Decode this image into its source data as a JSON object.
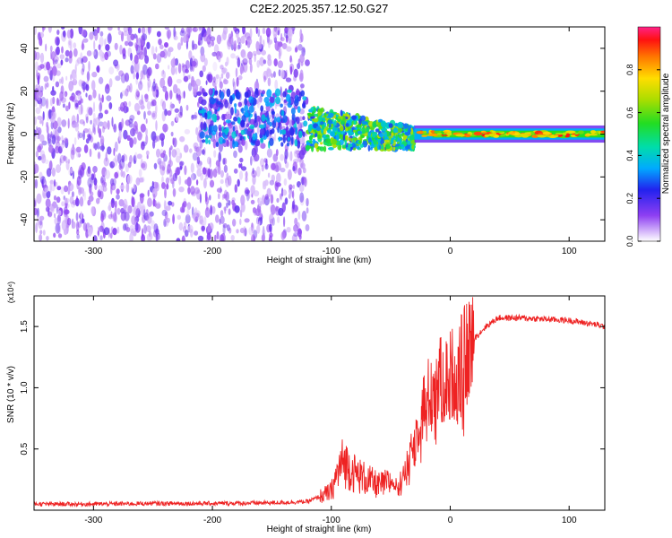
{
  "title": "C2E2.2025.357.12.50.G27",
  "chart_data": [
    {
      "type": "heatmap",
      "xlabel": "Height of straight line (km)",
      "ylabel": "Frequency (Hz)",
      "xlim": [
        -350,
        130
      ],
      "ylim": [
        -50,
        50
      ],
      "x_ticks": [
        -300,
        -200,
        -100,
        0,
        100
      ],
      "y_ticks": [
        -40,
        -20,
        0,
        20,
        40
      ],
      "colorbar": {
        "label": "Normalized spectral amplitude",
        "range": [
          0,
          1
        ],
        "ticks": [
          0.0,
          0.2,
          0.4,
          0.6,
          0.8
        ]
      },
      "regions": [
        {
          "x_range": [
            -350,
            -120
          ],
          "freq_range": [
            -50,
            50
          ],
          "amplitude": "low (0.0-0.2)"
        },
        {
          "x_range": [
            -210,
            -120
          ],
          "freq_range": [
            -5,
            20
          ],
          "amplitude": "low-mid (0.1-0.4)"
        },
        {
          "x_range": [
            -120,
            -30
          ],
          "freq_range": [
            -10,
            10
          ],
          "amplitude": "mid (0.3-0.7)"
        },
        {
          "x_range": [
            -30,
            130
          ],
          "freq_range": [
            -3,
            3
          ],
          "amplitude": "high (0.5-1.0)"
        }
      ],
      "grid": false
    },
    {
      "type": "line",
      "xlabel": "Height of straight line (km)",
      "ylabel": "SNR (10 * v/v)",
      "y_multiplier": "(x10⁴)",
      "xlim": [
        -350,
        130
      ],
      "ylim": [
        0,
        17500
      ],
      "x_ticks": [
        -300,
        -200,
        -100,
        0,
        100
      ],
      "y_ticks": [
        5000,
        10000,
        15000
      ],
      "y_tick_labels": [
        "0.5",
        "1.0",
        "1.5"
      ],
      "series": [
        {
          "color": "#ee2222",
          "x": [
            -350,
            -300,
            -250,
            -200,
            -150,
            -120,
            -100,
            -95,
            -90,
            -80,
            -70,
            -60,
            -50,
            -40,
            -35,
            -30,
            -25,
            -20,
            -15,
            -10,
            -5,
            0,
            5,
            10,
            20,
            30,
            40,
            60,
            80,
            100,
            120,
            130
          ],
          "y": [
            500,
            500,
            550,
            550,
            600,
            700,
            1500,
            3000,
            4000,
            3000,
            2500,
            2000,
            2300,
            2500,
            4000,
            5500,
            8000,
            9000,
            10000,
            10500,
            10500,
            11000,
            11500,
            12000,
            14000,
            15000,
            15700,
            15700,
            15600,
            15500,
            15200,
            15000
          ]
        }
      ],
      "grid": false
    }
  ]
}
